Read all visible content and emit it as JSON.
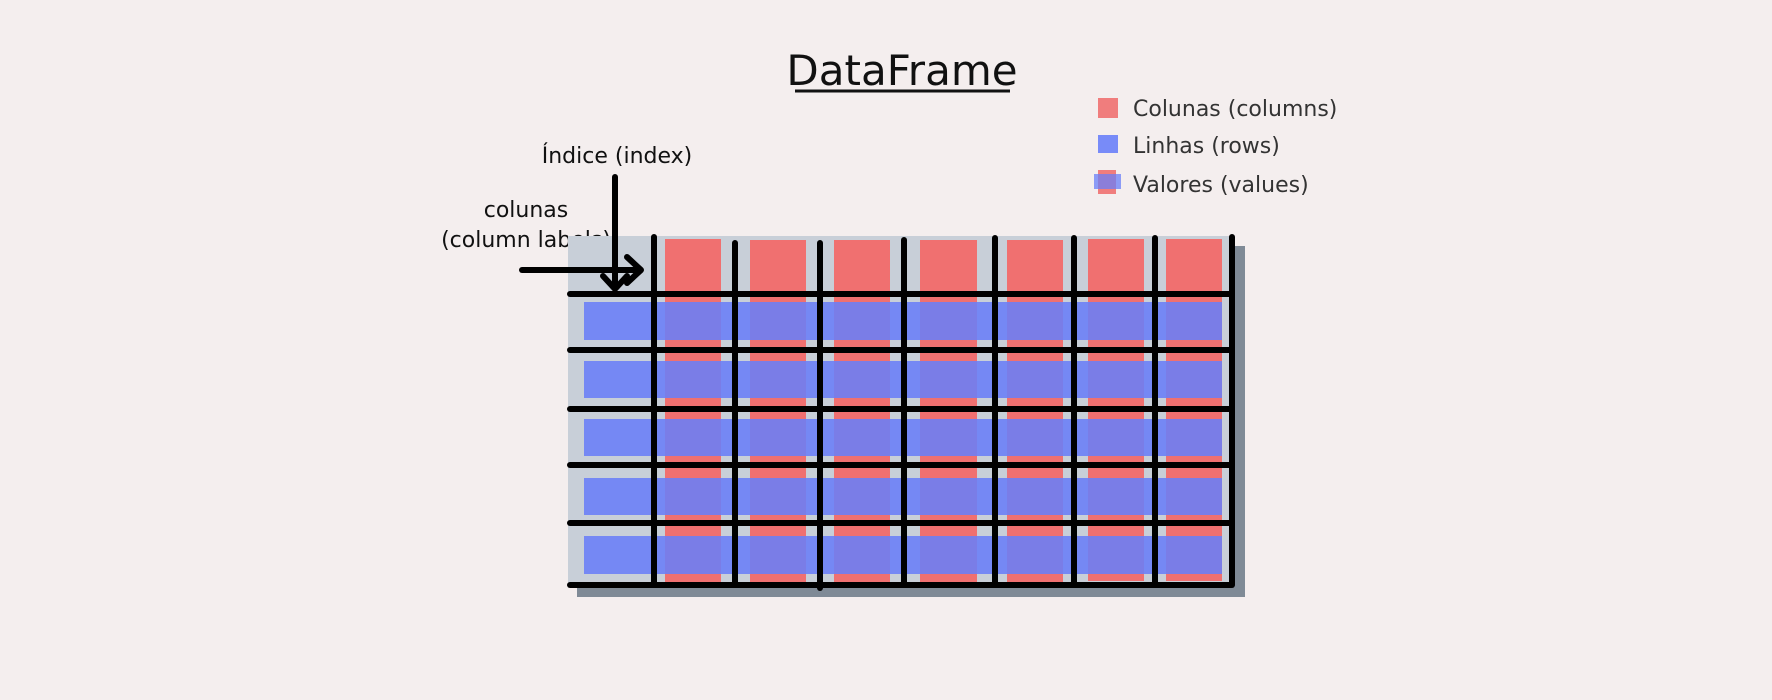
{
  "title": "DataFrame",
  "annotations": {
    "index_label": "Índice (index)",
    "columns_label_line1": "colunas",
    "columns_label_line2": "(column labels)"
  },
  "legend": {
    "columns": "Colunas (columns)",
    "rows": "Linhas (rows)",
    "values": "Valores (values)"
  },
  "colors": {
    "background": "#f4eeee",
    "table_background": "#c8cfd8",
    "table_shadow": "#7f8a96",
    "column_fill": "#f07070",
    "row_fill": "#6a7ff8",
    "grid": "#000000"
  }
}
